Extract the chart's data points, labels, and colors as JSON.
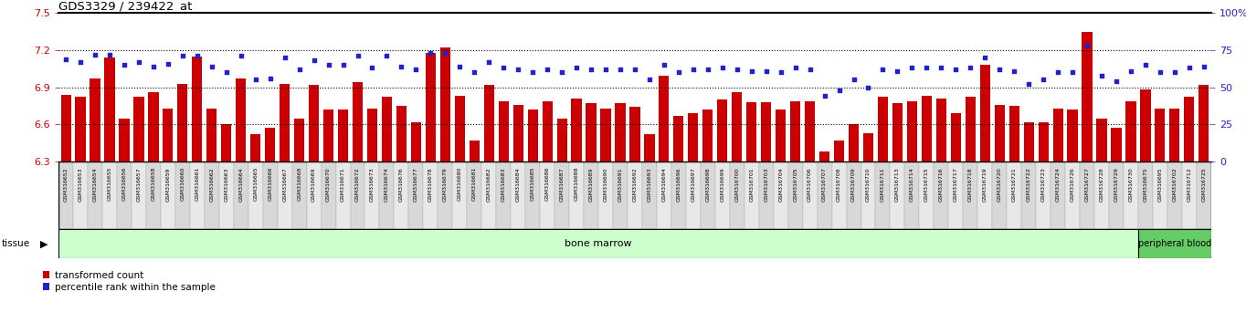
{
  "title": "GDS3329 / 239422_at",
  "ylim_left": [
    6.3,
    7.5
  ],
  "ylim_right": [
    0,
    100
  ],
  "yticks_left": [
    6.3,
    6.6,
    6.9,
    7.2,
    7.5
  ],
  "yticks_right": [
    0,
    25,
    50,
    75,
    100
  ],
  "ytick_labels_right": [
    "0",
    "25",
    "50",
    "75",
    "100%"
  ],
  "hlines": [
    6.6,
    6.9,
    7.2
  ],
  "bar_color": "#cc0000",
  "dot_color": "#2222cc",
  "bar_bottom": 6.3,
  "samples": [
    "GSM316652",
    "GSM316653",
    "GSM316654",
    "GSM316655",
    "GSM316656",
    "GSM316657",
    "GSM316658",
    "GSM316659",
    "GSM316660",
    "GSM316661",
    "GSM316662",
    "GSM316663",
    "GSM316664",
    "GSM316665",
    "GSM316666",
    "GSM316667",
    "GSM316668",
    "GSM316669",
    "GSM316670",
    "GSM316671",
    "GSM316672",
    "GSM316673",
    "GSM316674",
    "GSM316676",
    "GSM316677",
    "GSM316678",
    "GSM316679",
    "GSM316680",
    "GSM316681",
    "GSM316682",
    "GSM316683",
    "GSM316684",
    "GSM316685",
    "GSM316686",
    "GSM316687",
    "GSM316688",
    "GSM316689",
    "GSM316690",
    "GSM316691",
    "GSM316692",
    "GSM316693",
    "GSM316694",
    "GSM316696",
    "GSM316697",
    "GSM316698",
    "GSM316699",
    "GSM316700",
    "GSM316701",
    "GSM316703",
    "GSM316704",
    "GSM316705",
    "GSM316706",
    "GSM316707",
    "GSM316708",
    "GSM316709",
    "GSM316710",
    "GSM316711",
    "GSM316713",
    "GSM316714",
    "GSM316715",
    "GSM316716",
    "GSM316717",
    "GSM316718",
    "GSM316719",
    "GSM316720",
    "GSM316721",
    "GSM316722",
    "GSM316723",
    "GSM316724",
    "GSM316726",
    "GSM316727",
    "GSM316728",
    "GSM316729",
    "GSM316730",
    "GSM316675",
    "GSM316695",
    "GSM316702",
    "GSM316712",
    "GSM316725"
  ],
  "bar_values": [
    6.84,
    6.82,
    6.97,
    7.14,
    6.65,
    6.82,
    6.86,
    6.73,
    6.93,
    7.15,
    6.73,
    6.6,
    6.97,
    6.52,
    6.57,
    6.93,
    6.65,
    6.92,
    6.72,
    6.72,
    6.94,
    6.73,
    6.82,
    6.75,
    6.62,
    7.18,
    7.22,
    6.83,
    6.47,
    6.92,
    6.79,
    6.76,
    6.72,
    6.79,
    6.65,
    6.81,
    6.77,
    6.73,
    6.77,
    6.74,
    6.52,
    6.99,
    6.67,
    6.69,
    6.72,
    6.8,
    6.86,
    6.78,
    6.78,
    6.72,
    6.79,
    6.79,
    6.38,
    6.47,
    6.6,
    6.53,
    6.82,
    6.77,
    6.79,
    6.83,
    6.81,
    6.69,
    6.82,
    7.08,
    6.76,
    6.75,
    6.62,
    6.62,
    6.73,
    6.72,
    7.35,
    6.65,
    6.57,
    6.79,
    6.88,
    6.73,
    6.73,
    6.82,
    6.92
  ],
  "dot_values": [
    69,
    67,
    72,
    72,
    65,
    67,
    64,
    66,
    71,
    71,
    64,
    60,
    71,
    55,
    56,
    70,
    62,
    68,
    65,
    65,
    71,
    63,
    71,
    64,
    62,
    73,
    73,
    64,
    60,
    67,
    63,
    62,
    60,
    62,
    60,
    63,
    62,
    62,
    62,
    62,
    55,
    65,
    60,
    62,
    62,
    63,
    62,
    61,
    61,
    60,
    63,
    62,
    44,
    48,
    55,
    50,
    62,
    61,
    63,
    63,
    63,
    62,
    63,
    70,
    62,
    61,
    52,
    55,
    60,
    60,
    78,
    58,
    54,
    61,
    65,
    60,
    60,
    63,
    64
  ],
  "bone_marrow_count": 74,
  "tissue_label_bm": "bone marrow",
  "tissue_label_pb": "peripheral blood",
  "bm_color": "#ccffcc",
  "pb_color": "#66cc66",
  "tickbox_color": "#cccccc",
  "tickbox_border": "#888888",
  "legend_labels": [
    "transformed count",
    "percentile rank within the sample"
  ],
  "legend_colors": [
    "#cc0000",
    "#2222cc"
  ]
}
